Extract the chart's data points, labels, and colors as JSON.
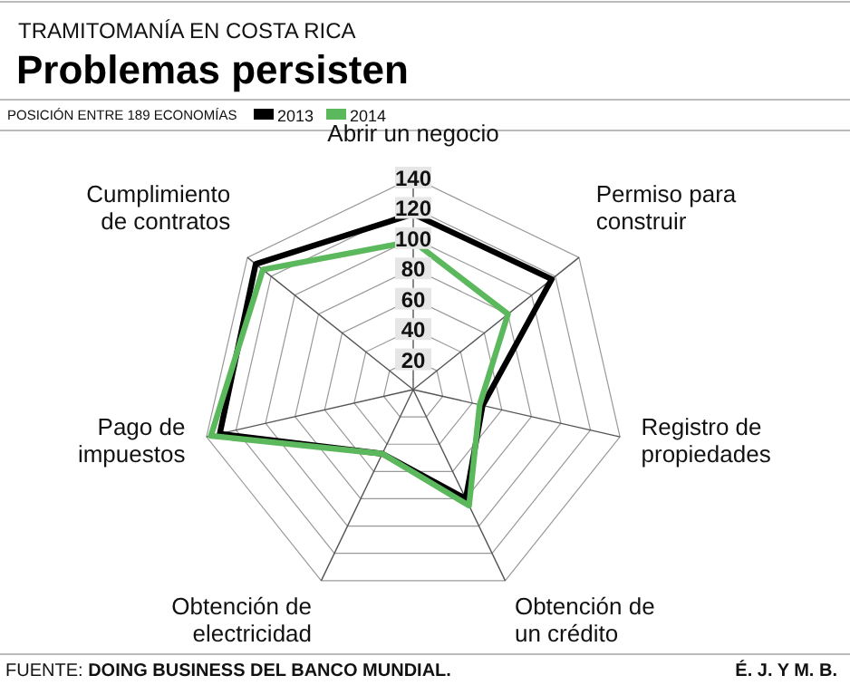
{
  "chart_data": {
    "type": "radar",
    "title": "Problemas persisten",
    "subtitle": "TRAMITOMANÍA EN COSTA RICA",
    "ylabel": "POSICIÓN ENTRE 189 ECONOMÍAS",
    "categories": [
      "Abrir un negocio",
      "Permiso para construir",
      "Registro de propiedades",
      "Obtención de un crédito",
      "Obtención de electricidad",
      "Pago de impuestos",
      "Cumplimiento de contratos"
    ],
    "series": [
      {
        "name": "2013",
        "color": "#000000",
        "values": [
          116,
          117,
          47,
          80,
          47,
          131,
          133
        ]
      },
      {
        "name": "2014",
        "color": "#5cb85c",
        "values": [
          98,
          80,
          45,
          85,
          47,
          137,
          127
        ]
      }
    ],
    "ylim": [
      0,
      140
    ],
    "yticks": [
      20,
      40,
      60,
      80,
      100,
      120,
      140
    ],
    "grid": true,
    "legend": "top",
    "annotations": [
      "FUENTE: DOING BUSINESS DEL BANCO MUNDIAL.",
      "É. J. Y M. B."
    ]
  }
}
